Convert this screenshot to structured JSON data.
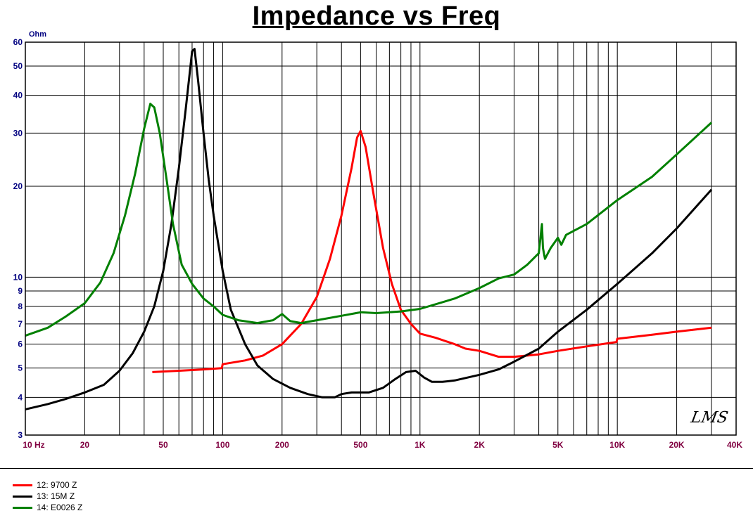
{
  "title": "Impedance vs Freq",
  "y_unit": "Ohm",
  "watermark": "LMS",
  "legend": [
    {
      "label": "12: 9700 Z",
      "color": "#ff0000"
    },
    {
      "label": "13: 15M Z",
      "color": "#000000"
    },
    {
      "label": "14: E0026 Z",
      "color": "#008000"
    }
  ],
  "chart_data": {
    "type": "line",
    "title": "Impedance vs Freq",
    "xlabel": "",
    "ylabel": "Ohm",
    "xscale": "log",
    "yscale": "log",
    "xlim": [
      10,
      40000
    ],
    "ylim": [
      3,
      60
    ],
    "grid": true,
    "legend_position": "bottom-left",
    "x_ticks": [
      {
        "value": 10,
        "label": "10  Hz"
      },
      {
        "value": 20,
        "label": "20"
      },
      {
        "value": 50,
        "label": "50"
      },
      {
        "value": 100,
        "label": "100"
      },
      {
        "value": 200,
        "label": "200"
      },
      {
        "value": 500,
        "label": "500"
      },
      {
        "value": 1000,
        "label": "1K"
      },
      {
        "value": 2000,
        "label": "2K"
      },
      {
        "value": 5000,
        "label": "5K"
      },
      {
        "value": 10000,
        "label": "10K"
      },
      {
        "value": 20000,
        "label": "20K"
      },
      {
        "value": 40000,
        "label": "40K"
      }
    ],
    "y_ticks": [
      {
        "value": 3,
        "label": "3"
      },
      {
        "value": 4,
        "label": "4"
      },
      {
        "value": 5,
        "label": "5"
      },
      {
        "value": 6,
        "label": "6"
      },
      {
        "value": 7,
        "label": "7"
      },
      {
        "value": 8,
        "label": "8"
      },
      {
        "value": 9,
        "label": "9"
      },
      {
        "value": 10,
        "label": "10"
      },
      {
        "value": 20,
        "label": "20"
      },
      {
        "value": 30,
        "label": "30"
      },
      {
        "value": 40,
        "label": "40"
      },
      {
        "value": 50,
        "label": "50"
      },
      {
        "value": 60,
        "label": "60"
      }
    ],
    "series": [
      {
        "name": "12: 9700 Z",
        "color": "#ff0000",
        "points": [
          [
            44,
            4.85
          ],
          [
            60,
            4.9
          ],
          [
            80,
            4.95
          ],
          [
            99,
            5.0
          ],
          [
            100,
            5.15
          ],
          [
            130,
            5.3
          ],
          [
            160,
            5.5
          ],
          [
            200,
            6.0
          ],
          [
            250,
            7.0
          ],
          [
            300,
            8.6
          ],
          [
            350,
            11.5
          ],
          [
            400,
            16
          ],
          [
            450,
            23
          ],
          [
            480,
            29
          ],
          [
            500,
            30.5
          ],
          [
            530,
            27
          ],
          [
            580,
            19
          ],
          [
            650,
            12.5
          ],
          [
            720,
            9.5
          ],
          [
            800,
            7.8
          ],
          [
            900,
            7.0
          ],
          [
            1000,
            6.5
          ],
          [
            1200,
            6.3
          ],
          [
            1500,
            6.0
          ],
          [
            1700,
            5.8
          ],
          [
            2000,
            5.7
          ],
          [
            2500,
            5.45
          ],
          [
            3000,
            5.45
          ],
          [
            3500,
            5.5
          ],
          [
            4000,
            5.55
          ],
          [
            5000,
            5.7
          ],
          [
            7000,
            5.9
          ],
          [
            9900,
            6.1
          ],
          [
            10000,
            6.25
          ],
          [
            15000,
            6.45
          ],
          [
            20000,
            6.6
          ],
          [
            30000,
            6.8
          ]
        ]
      },
      {
        "name": "13: 15M Z",
        "color": "#000000",
        "points": [
          [
            10,
            3.65
          ],
          [
            13,
            3.8
          ],
          [
            16,
            3.95
          ],
          [
            20,
            4.15
          ],
          [
            25,
            4.4
          ],
          [
            30,
            4.9
          ],
          [
            35,
            5.6
          ],
          [
            40,
            6.6
          ],
          [
            45,
            8.0
          ],
          [
            50,
            10.5
          ],
          [
            55,
            15
          ],
          [
            60,
            23
          ],
          [
            65,
            36
          ],
          [
            70,
            56
          ],
          [
            72,
            57
          ],
          [
            75,
            45
          ],
          [
            80,
            30
          ],
          [
            85,
            21
          ],
          [
            90,
            16
          ],
          [
            100,
            10.5
          ],
          [
            110,
            7.8
          ],
          [
            130,
            6.0
          ],
          [
            150,
            5.1
          ],
          [
            180,
            4.6
          ],
          [
            220,
            4.3
          ],
          [
            270,
            4.1
          ],
          [
            320,
            4.0
          ],
          [
            370,
            4.0
          ],
          [
            400,
            4.1
          ],
          [
            450,
            4.15
          ],
          [
            550,
            4.15
          ],
          [
            650,
            4.3
          ],
          [
            750,
            4.6
          ],
          [
            850,
            4.85
          ],
          [
            950,
            4.9
          ],
          [
            1050,
            4.65
          ],
          [
            1150,
            4.5
          ],
          [
            1300,
            4.5
          ],
          [
            1500,
            4.55
          ],
          [
            2000,
            4.75
          ],
          [
            2500,
            4.95
          ],
          [
            3000,
            5.25
          ],
          [
            4000,
            5.8
          ],
          [
            5000,
            6.6
          ],
          [
            7000,
            7.8
          ],
          [
            10000,
            9.5
          ],
          [
            15000,
            12
          ],
          [
            20000,
            14.5
          ],
          [
            30000,
            19.5
          ]
        ]
      },
      {
        "name": "14: E0026 Z",
        "color": "#008000",
        "points": [
          [
            10,
            6.4
          ],
          [
            13,
            6.8
          ],
          [
            16,
            7.4
          ],
          [
            20,
            8.2
          ],
          [
            24,
            9.6
          ],
          [
            28,
            12
          ],
          [
            32,
            16
          ],
          [
            36,
            22
          ],
          [
            40,
            31
          ],
          [
            43,
            37.5
          ],
          [
            45,
            36.5
          ],
          [
            48,
            30
          ],
          [
            52,
            21
          ],
          [
            56,
            15
          ],
          [
            62,
            11
          ],
          [
            70,
            9.5
          ],
          [
            80,
            8.5
          ],
          [
            90,
            8.0
          ],
          [
            100,
            7.5
          ],
          [
            120,
            7.2
          ],
          [
            150,
            7.05
          ],
          [
            180,
            7.2
          ],
          [
            200,
            7.55
          ],
          [
            220,
            7.15
          ],
          [
            250,
            7.05
          ],
          [
            300,
            7.2
          ],
          [
            400,
            7.45
          ],
          [
            500,
            7.65
          ],
          [
            600,
            7.6
          ],
          [
            800,
            7.7
          ],
          [
            1000,
            7.85
          ],
          [
            1500,
            8.5
          ],
          [
            2000,
            9.2
          ],
          [
            2500,
            9.9
          ],
          [
            3000,
            10.2
          ],
          [
            3500,
            11
          ],
          [
            4000,
            12
          ],
          [
            4150,
            15
          ],
          [
            4200,
            12.5
          ],
          [
            4300,
            11.5
          ],
          [
            4600,
            12.5
          ],
          [
            5000,
            13.5
          ],
          [
            5200,
            12.8
          ],
          [
            5500,
            13.8
          ],
          [
            7000,
            15
          ],
          [
            10000,
            18
          ],
          [
            15000,
            21.5
          ],
          [
            20000,
            25.5
          ],
          [
            30000,
            32.5
          ]
        ]
      }
    ]
  }
}
